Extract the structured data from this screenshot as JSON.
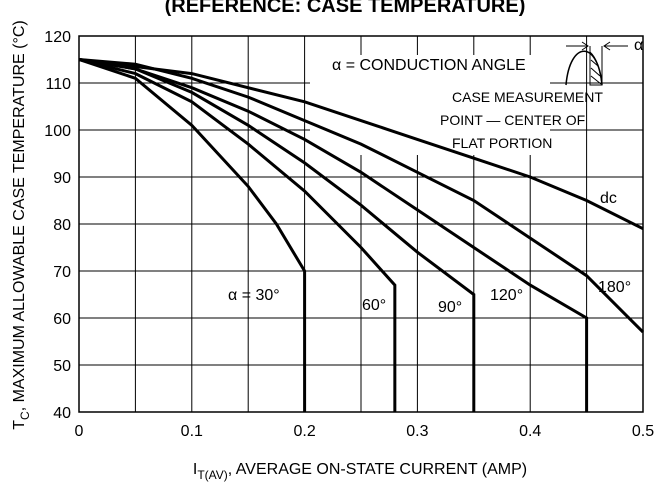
{
  "chart_data": {
    "type": "line",
    "title": "(REFERENCE: CASE TEMPERATURE)",
    "x_label": {
      "main": "I",
      "sub": "T(AV)",
      "rest": ", AVERAGE ON-STATE CURRENT (AMP)"
    },
    "y_label": {
      "main": "T",
      "sub": "C",
      "rest": ", MAXIMUM ALLOWABLE CASE TEMPERATURE (°C)"
    },
    "annotations": [
      "α = CONDUCTION ANGLE",
      "CASE MEASUREMENT",
      "POINT — CENTER OF",
      "FLAT PORTION",
      "α"
    ],
    "xlim": [
      0,
      0.5
    ],
    "xticks": [
      0,
      0.1,
      0.2,
      0.3,
      0.4,
      0.5
    ],
    "ylim": [
      40,
      120
    ],
    "yticks": [
      40,
      50,
      60,
      70,
      80,
      90,
      100,
      110,
      120
    ],
    "grid": true,
    "series": [
      {
        "name": "α = 30°",
        "color": "#000000",
        "x": [
          0,
          0.05,
          0.1,
          0.15,
          0.175,
          0.2,
          0.2
        ],
        "values": [
          115,
          111,
          101,
          88,
          80,
          70,
          40
        ]
      },
      {
        "name": "60°",
        "color": "#000000",
        "x": [
          0,
          0.05,
          0.1,
          0.15,
          0.2,
          0.25,
          0.28,
          0.28
        ],
        "values": [
          115,
          112,
          106,
          97,
          87,
          75,
          67,
          40
        ]
      },
      {
        "name": "90°",
        "color": "#000000",
        "x": [
          0,
          0.05,
          0.1,
          0.15,
          0.2,
          0.25,
          0.3,
          0.35,
          0.35
        ],
        "values": [
          115,
          113,
          108,
          101,
          93,
          84,
          74,
          65,
          40
        ]
      },
      {
        "name": "120°",
        "color": "#000000",
        "x": [
          0,
          0.05,
          0.1,
          0.15,
          0.2,
          0.25,
          0.3,
          0.35,
          0.4,
          0.45,
          0.45
        ],
        "values": [
          115,
          113,
          109,
          104,
          98,
          91,
          83,
          75,
          67,
          60,
          40
        ]
      },
      {
        "name": "180°",
        "color": "#000000",
        "x": [
          0,
          0.05,
          0.1,
          0.15,
          0.2,
          0.25,
          0.3,
          0.35,
          0.4,
          0.45,
          0.5
        ],
        "values": [
          115,
          114,
          111,
          107,
          102,
          97,
          91,
          85,
          77,
          69,
          57
        ]
      },
      {
        "name": "dc",
        "color": "#000000",
        "x": [
          0,
          0.1,
          0.2,
          0.3,
          0.35,
          0.4,
          0.45,
          0.5
        ],
        "values": [
          115,
          112,
          106,
          98,
          94,
          90,
          85,
          79
        ]
      }
    ]
  }
}
